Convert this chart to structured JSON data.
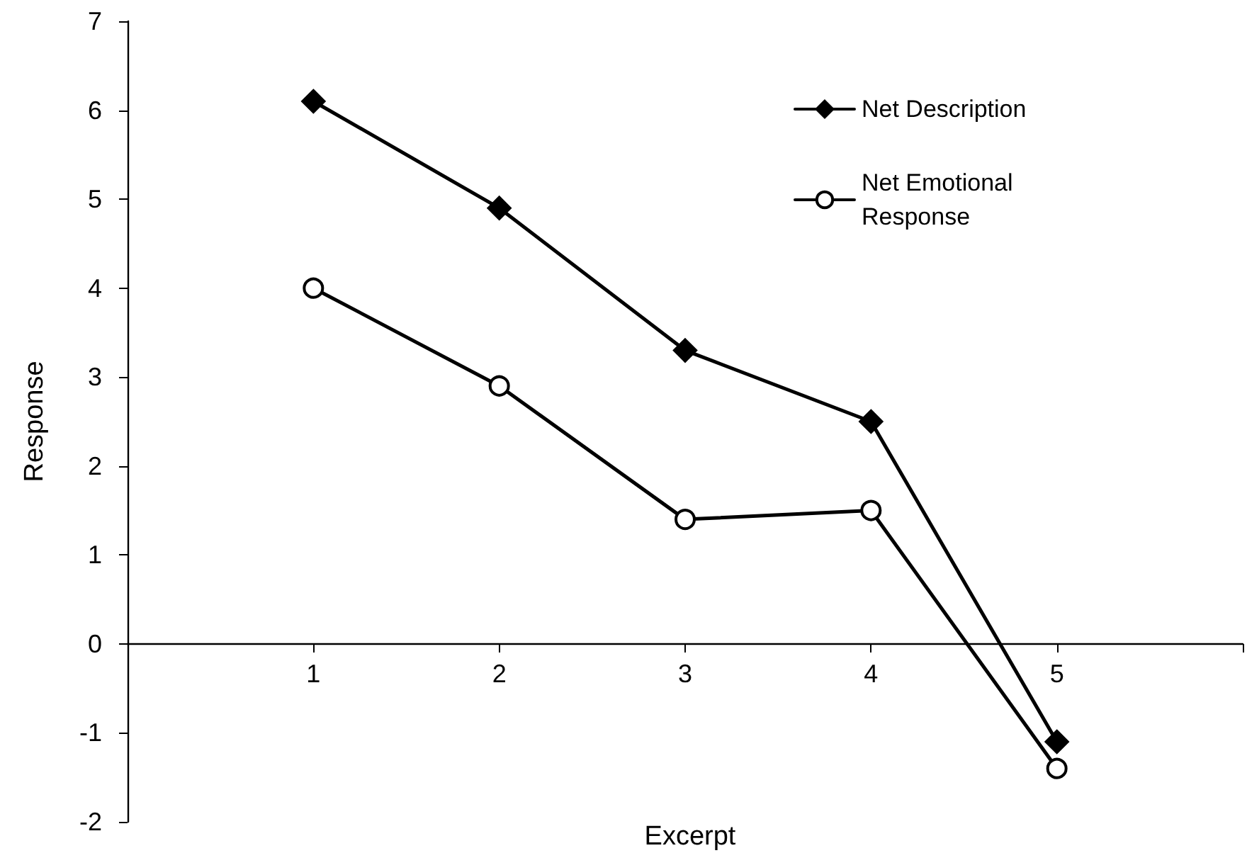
{
  "chart_data": {
    "type": "line",
    "xlabel": "Excerpt",
    "ylabel": "Response",
    "x": [
      1,
      2,
      3,
      4,
      5
    ],
    "xlim": [
      0,
      6
    ],
    "xticks": [
      {
        "value": 0,
        "label": null
      },
      1,
      2,
      3,
      4,
      5,
      {
        "value": 6,
        "label": null
      }
    ],
    "ylim": [
      -2,
      7
    ],
    "yticks": [
      -2,
      -1,
      0,
      1,
      2,
      3,
      4,
      5,
      6,
      7
    ],
    "series": [
      {
        "name": "Net Description",
        "color": "#000000",
        "marker": "diamond",
        "values": [
          6.1,
          4.9,
          3.3,
          2.5,
          -1.1
        ]
      },
      {
        "name": "Net Emotional Response",
        "color": "#000000",
        "marker": "circle",
        "values": [
          4.0,
          2.9,
          1.4,
          1.5,
          -1.4
        ]
      }
    ],
    "grid": false,
    "legend": "top right",
    "line_style": "solid"
  }
}
